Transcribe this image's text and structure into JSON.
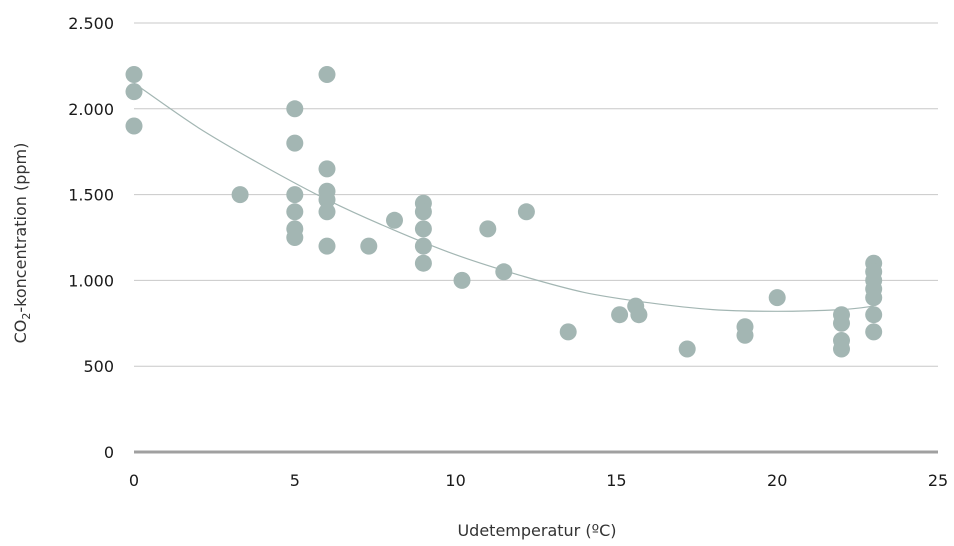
{
  "chart_data": {
    "type": "scatter",
    "xlabel": "Udetemperatur (ºC)",
    "ylabel_main": "CO",
    "ylabel_sub": "2",
    "ylabel_rest": "-koncentration (ppm)",
    "xlim": [
      0,
      25
    ],
    "ylim": [
      0,
      2500
    ],
    "x_ticks": [
      {
        "value": 0,
        "label": "0"
      },
      {
        "value": 5,
        "label": "5"
      },
      {
        "value": 10,
        "label": "10"
      },
      {
        "value": 15,
        "label": "15"
      },
      {
        "value": 20,
        "label": "20"
      },
      {
        "value": 25,
        "label": "25"
      }
    ],
    "y_ticks": [
      {
        "value": 0,
        "label": "0"
      },
      {
        "value": 500,
        "label": "500"
      },
      {
        "value": 1000,
        "label": "1.000"
      },
      {
        "value": 1500,
        "label": "1.500"
      },
      {
        "value": 2000,
        "label": "2.000"
      },
      {
        "value": 2500,
        "label": "2.500"
      }
    ],
    "grid": true,
    "legend": "none",
    "colors": {
      "point": "#a3b6b3",
      "trendline": "#a3b6b3",
      "gridline": "#c8c8c8",
      "baseline": "#a0a0a0"
    },
    "points": [
      {
        "x": 0,
        "y": 2200
      },
      {
        "x": 0,
        "y": 2100
      },
      {
        "x": 0,
        "y": 1900
      },
      {
        "x": 3.3,
        "y": 1500
      },
      {
        "x": 5,
        "y": 2000
      },
      {
        "x": 5,
        "y": 1800
      },
      {
        "x": 5,
        "y": 1500
      },
      {
        "x": 5,
        "y": 1400
      },
      {
        "x": 5,
        "y": 1300
      },
      {
        "x": 5,
        "y": 1250
      },
      {
        "x": 6,
        "y": 2200
      },
      {
        "x": 6,
        "y": 1650
      },
      {
        "x": 6,
        "y": 1520
      },
      {
        "x": 6,
        "y": 1470
      },
      {
        "x": 6,
        "y": 1400
      },
      {
        "x": 6,
        "y": 1200
      },
      {
        "x": 7.3,
        "y": 1200
      },
      {
        "x": 8.1,
        "y": 1350
      },
      {
        "x": 9,
        "y": 1450
      },
      {
        "x": 9,
        "y": 1400
      },
      {
        "x": 9,
        "y": 1300
      },
      {
        "x": 9,
        "y": 1200
      },
      {
        "x": 9,
        "y": 1100
      },
      {
        "x": 10.2,
        "y": 1000
      },
      {
        "x": 11,
        "y": 1300
      },
      {
        "x": 11.5,
        "y": 1050
      },
      {
        "x": 12.2,
        "y": 1400
      },
      {
        "x": 13.5,
        "y": 700
      },
      {
        "x": 15.1,
        "y": 800
      },
      {
        "x": 15.6,
        "y": 850
      },
      {
        "x": 15.7,
        "y": 800
      },
      {
        "x": 17.2,
        "y": 600
      },
      {
        "x": 19,
        "y": 730
      },
      {
        "x": 19,
        "y": 680
      },
      {
        "x": 20,
        "y": 900
      },
      {
        "x": 22,
        "y": 800
      },
      {
        "x": 22,
        "y": 750
      },
      {
        "x": 22,
        "y": 650
      },
      {
        "x": 22,
        "y": 600
      },
      {
        "x": 23,
        "y": 1100
      },
      {
        "x": 23,
        "y": 1050
      },
      {
        "x": 23,
        "y": 1000
      },
      {
        "x": 23,
        "y": 950
      },
      {
        "x": 23,
        "y": 900
      },
      {
        "x": 23,
        "y": 800
      },
      {
        "x": 23,
        "y": 700
      }
    ],
    "trendline": {
      "type": "polynomial",
      "x": [
        0,
        2,
        4,
        6,
        8,
        10,
        12,
        14,
        16,
        18,
        20,
        22,
        23
      ],
      "y": [
        2150,
        1890,
        1670,
        1470,
        1300,
        1150,
        1030,
        930,
        870,
        830,
        820,
        830,
        850
      ]
    }
  }
}
